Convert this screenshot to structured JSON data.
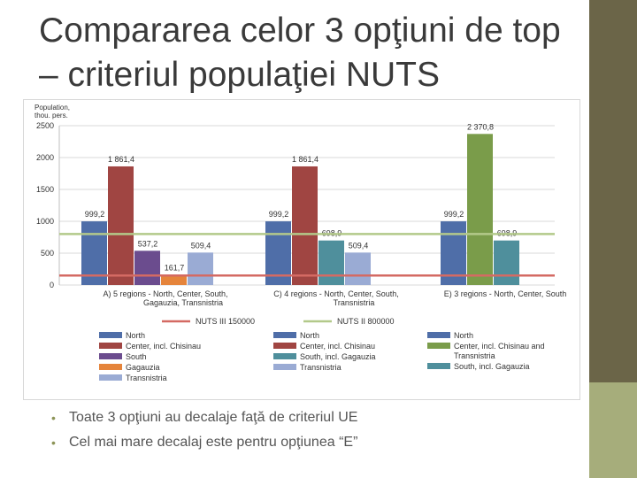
{
  "slide": {
    "title": "Compararea celor 3 opţiuni de top – criteriul populaţiei NUTS",
    "bullets": [
      "Toate 3 opţiuni au decalaje faţă de criteriul UE",
      "Cel mai mare decalaj este pentru opţiunea “E”"
    ],
    "bullet_symbol": "•",
    "accent_colors": {
      "dark_bar": "#6b6548",
      "light_bar": "#a6ad7b"
    }
  },
  "chart_data": {
    "type": "bar",
    "ylabel": "Population, thou. pers.",
    "ylim": [
      0,
      2500
    ],
    "yticks": [
      0,
      500,
      1000,
      1500,
      2000,
      2500
    ],
    "grid": true,
    "groups": [
      {
        "label": "A)  5 regions  - North, Center, South, Gagauzia, Transnistria",
        "bars": [
          {
            "name": "North",
            "value": 999.2,
            "label": "999,2",
            "color": "#4f6ea8"
          },
          {
            "name": "Center, incl. Chisinau",
            "value": 1861.4,
            "label": "1 861,4",
            "color": "#a04542"
          },
          {
            "name": "South",
            "value": 537.2,
            "label": "537,2",
            "color": "#6b4c8e"
          },
          {
            "name": "Gagauzia",
            "value": 161.7,
            "label": "161,7",
            "color": "#e5843b"
          },
          {
            "name": "Transnistria",
            "value": 509.4,
            "label": "509,4",
            "color": "#9aabd4"
          }
        ],
        "legend": [
          {
            "name": "North",
            "color": "#4f6ea8"
          },
          {
            "name": "Center, incl. Chisinau",
            "color": "#a04542"
          },
          {
            "name": "South",
            "color": "#6b4c8e"
          },
          {
            "name": "Gagauzia",
            "color": "#e5843b"
          },
          {
            "name": "Transnistria",
            "color": "#9aabd4"
          }
        ]
      },
      {
        "label": "C)  4 regions  - North, Center, South, Transnistria",
        "bars": [
          {
            "name": "North",
            "value": 999.2,
            "label": "999,2",
            "color": "#4f6ea8"
          },
          {
            "name": "Center, incl. Chisinau",
            "value": 1861.4,
            "label": "1 861,4",
            "color": "#a04542"
          },
          {
            "name": "South, incl. Gagauzia",
            "value": 698.9,
            "label": "698,9",
            "color": "#4f8f9c"
          },
          {
            "name": "Transnistria",
            "value": 509.4,
            "label": "509,4",
            "color": "#9aabd4"
          }
        ],
        "legend": [
          {
            "name": "North",
            "color": "#4f6ea8"
          },
          {
            "name": "Center, incl. Chisinau",
            "color": "#a04542"
          },
          {
            "name": "South, incl. Gagauzia",
            "color": "#4f8f9c"
          },
          {
            "name": "Transnistria",
            "color": "#9aabd4"
          }
        ]
      },
      {
        "label": "E)  3 regions  - North, Center, South",
        "bars": [
          {
            "name": "North",
            "value": 999.2,
            "label": "999,2",
            "color": "#4f6ea8"
          },
          {
            "name": "Center, incl. Chisinau and Transnistria",
            "value": 2370.8,
            "label": "2 370,8",
            "color": "#7a9c4a"
          },
          {
            "name": "South, incl. Gagauzia",
            "value": 698.9,
            "label": "698,9",
            "color": "#4f8f9c"
          }
        ],
        "legend": [
          {
            "name": "North",
            "color": "#4f6ea8"
          },
          {
            "name": "Center, incl. Chisinau and Transnistria",
            "color": "#7a9c4a"
          },
          {
            "name": "South, incl. Gagauzia",
            "color": "#4f8f9c"
          }
        ]
      }
    ],
    "reference_lines": [
      {
        "name": "NUTS III 150000",
        "value": 150,
        "color": "#d46a63"
      },
      {
        "name": "NUTS II 800000",
        "value": 800,
        "color": "#b3c98a"
      }
    ]
  }
}
